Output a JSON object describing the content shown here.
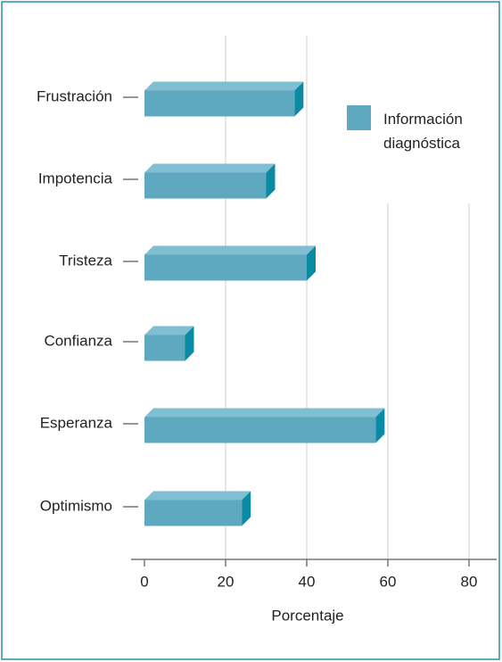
{
  "chart_data": {
    "type": "bar3d_horizontal",
    "categories": [
      "Frustración",
      "Impotencia",
      "Tristeza",
      "Confianza",
      "Esperanza",
      "Optimismo"
    ],
    "series": [
      {
        "name": "Información diagnóstica",
        "color": "#5ea8c0",
        "values": [
          37,
          30,
          40,
          10,
          57,
          24
        ]
      }
    ],
    "xlabel": "Porcentaje",
    "xlim": [
      0,
      80
    ],
    "xticks": [
      0,
      20,
      40,
      60,
      80
    ],
    "grid": true,
    "legend": "upper right"
  }
}
